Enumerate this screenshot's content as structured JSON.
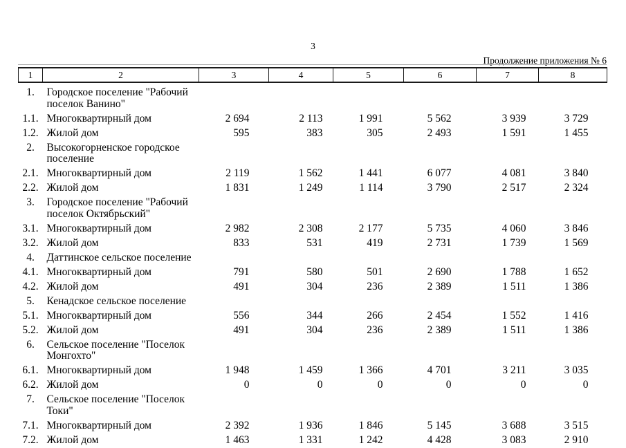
{
  "page": {
    "number": "3",
    "continuation": "Продолжение приложения № 6"
  },
  "table": {
    "header_cols": [
      "1",
      "2",
      "3",
      "4",
      "5",
      "6",
      "7",
      "8"
    ],
    "rows": [
      {
        "num": "1.",
        "type": "section",
        "name": "Городское поселение \"Рабочий\nпоселок Ванино\"",
        "values": [
          "",
          "",
          "",
          "",
          "",
          ""
        ]
      },
      {
        "num": "1.1.",
        "type": "data",
        "name": "Многоквартирный дом",
        "values": [
          "2 694",
          "2 113",
          "1 991",
          "5 562",
          "3 939",
          "3 729"
        ]
      },
      {
        "num": "1.2.",
        "type": "data",
        "name": "Жилой дом",
        "values": [
          "595",
          "383",
          "305",
          "2 493",
          "1 591",
          "1 455"
        ]
      },
      {
        "num": "2.",
        "type": "section",
        "name": "Высокогорненское городское\nпоселение",
        "values": [
          "",
          "",
          "",
          "",
          "",
          ""
        ]
      },
      {
        "num": "2.1.",
        "type": "data",
        "name": "Многоквартирный дом",
        "values": [
          "2 119",
          "1 562",
          "1 441",
          "6 077",
          "4 081",
          "3 840"
        ]
      },
      {
        "num": "2.2.",
        "type": "data",
        "name": "Жилой дом",
        "values": [
          "1 831",
          "1 249",
          "1 114",
          "3 790",
          "2 517",
          "2 324"
        ]
      },
      {
        "num": "3.",
        "type": "section",
        "name": "Городское поселение \"Рабочий\nпоселок Октябрьский\"",
        "values": [
          "",
          "",
          "",
          "",
          "",
          ""
        ]
      },
      {
        "num": "3.1.",
        "type": "data",
        "name": "Многоквартирный дом",
        "values": [
          "2 982",
          "2 308",
          "2 177",
          "5 735",
          "4 060",
          "3 846"
        ]
      },
      {
        "num": "3.2.",
        "type": "data",
        "name": "Жилой дом",
        "values": [
          "833",
          "531",
          "419",
          "2 731",
          "1 739",
          "1 569"
        ]
      },
      {
        "num": "4.",
        "type": "section",
        "name": "Даттинское сельское поселение",
        "values": [
          "",
          "",
          "",
          "",
          "",
          ""
        ]
      },
      {
        "num": "4.1.",
        "type": "data",
        "name": "Многоквартирный дом",
        "values": [
          "791",
          "580",
          "501",
          "2 690",
          "1 788",
          "1 652"
        ]
      },
      {
        "num": "4.2.",
        "type": "data",
        "name": "Жилой дом",
        "values": [
          "491",
          "304",
          "236",
          "2 389",
          "1 511",
          "1 386"
        ]
      },
      {
        "num": "5.",
        "type": "section",
        "name": "Кенадское сельское поселение",
        "values": [
          "",
          "",
          "",
          "",
          "",
          ""
        ]
      },
      {
        "num": "5.1.",
        "type": "data",
        "name": "Многоквартирный дом",
        "values": [
          "556",
          "344",
          "266",
          "2 454",
          "1 552",
          "1 416"
        ]
      },
      {
        "num": "5.2.",
        "type": "data",
        "name": "Жилой дом",
        "values": [
          "491",
          "304",
          "236",
          "2 389",
          "1 511",
          "1 386"
        ]
      },
      {
        "num": "6.",
        "type": "section",
        "name": "Сельское поселение \"Поселок\nМонгохто\"",
        "values": [
          "",
          "",
          "",
          "",
          "",
          ""
        ]
      },
      {
        "num": "6.1.",
        "type": "data",
        "name": "Многоквартирный дом",
        "values": [
          "1 948",
          "1 459",
          "1 366",
          "4 701",
          "3 211",
          "3 035"
        ]
      },
      {
        "num": "6.2.",
        "type": "data",
        "name": "Жилой дом",
        "values": [
          "0",
          "0",
          "0",
          "0",
          "0",
          "0"
        ]
      },
      {
        "num": "7.",
        "type": "section",
        "name": "Сельское поселение \"Поселок\nТоки\"",
        "values": [
          "",
          "",
          "",
          "",
          "",
          ""
        ]
      },
      {
        "num": "7.1.",
        "type": "data",
        "name": "Многоквартирный дом",
        "values": [
          "2 392",
          "1 936",
          "1 846",
          "5 145",
          "3 688",
          "3 515"
        ]
      },
      {
        "num": "7.2.",
        "type": "data",
        "name": "Жилой дом",
        "values": [
          "1 463",
          "1 331",
          "1 242",
          "4 428",
          "3 083",
          "2 910"
        ]
      }
    ]
  }
}
